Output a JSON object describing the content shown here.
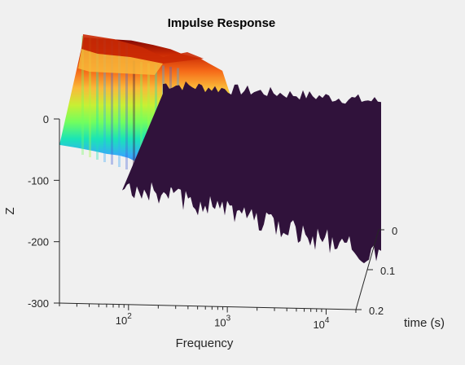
{
  "chart_data": {
    "type": "surface",
    "title": "Impulse Response",
    "xlabel": "Frequency",
    "ylabel": "time (s)",
    "zlabel": "Z",
    "x_scale": "log",
    "xlim": [
      20,
      20000
    ],
    "ylim": [
      0,
      0.2
    ],
    "zlim": [
      -300,
      0
    ],
    "x_ticks": [
      {
        "value": 100,
        "base": "10",
        "exp": "2"
      },
      {
        "value": 1000,
        "base": "10",
        "exp": "3"
      },
      {
        "value": 10000,
        "base": "10",
        "exp": "4"
      }
    ],
    "y_ticks": [
      {
        "value": 0,
        "label": "0"
      },
      {
        "value": 0.1,
        "label": "0.1"
      },
      {
        "value": 0.2,
        "label": "0.2"
      }
    ],
    "z_ticks": [
      {
        "value": 0,
        "label": "0"
      },
      {
        "value": -100,
        "label": "-100"
      },
      {
        "value": -200,
        "label": "-200"
      },
      {
        "value": -300,
        "label": "-300"
      }
    ],
    "colormap": [
      "#30123b",
      "#4662d7",
      "#36aaf9",
      "#1ae4b6",
      "#72fe5e",
      "#c8ef34",
      "#faba39",
      "#f66b19",
      "#ca2a04",
      "#7a0403"
    ],
    "front_profile": [
      {
        "x": 20,
        "z": -53
      },
      {
        "x": 30,
        "z": -57
      },
      {
        "x": 45,
        "z": -62
      },
      {
        "x": 60,
        "z": -66
      },
      {
        "x": 80,
        "z": -68
      },
      {
        "x": 100,
        "z": -72
      },
      {
        "x": 120,
        "z": -78
      },
      {
        "x": 150,
        "z": -95
      },
      {
        "x": 200,
        "z": -110
      },
      {
        "x": 300,
        "z": -122
      }
    ],
    "back_profile": [
      {
        "x": 20,
        "z": 142
      },
      {
        "x": 60,
        "z": 138
      },
      {
        "x": 100,
        "z": 130
      },
      {
        "x": 150,
        "z": 122
      },
      {
        "x": 200,
        "z": 112
      },
      {
        "x": 300,
        "z": 104
      },
      {
        "x": 500,
        "z": 80
      },
      {
        "x": 800,
        "z": 55
      },
      {
        "x": 1500,
        "z": 55
      },
      {
        "x": 4000,
        "z": 50
      },
      {
        "x": 20000,
        "z": 50
      }
    ]
  }
}
